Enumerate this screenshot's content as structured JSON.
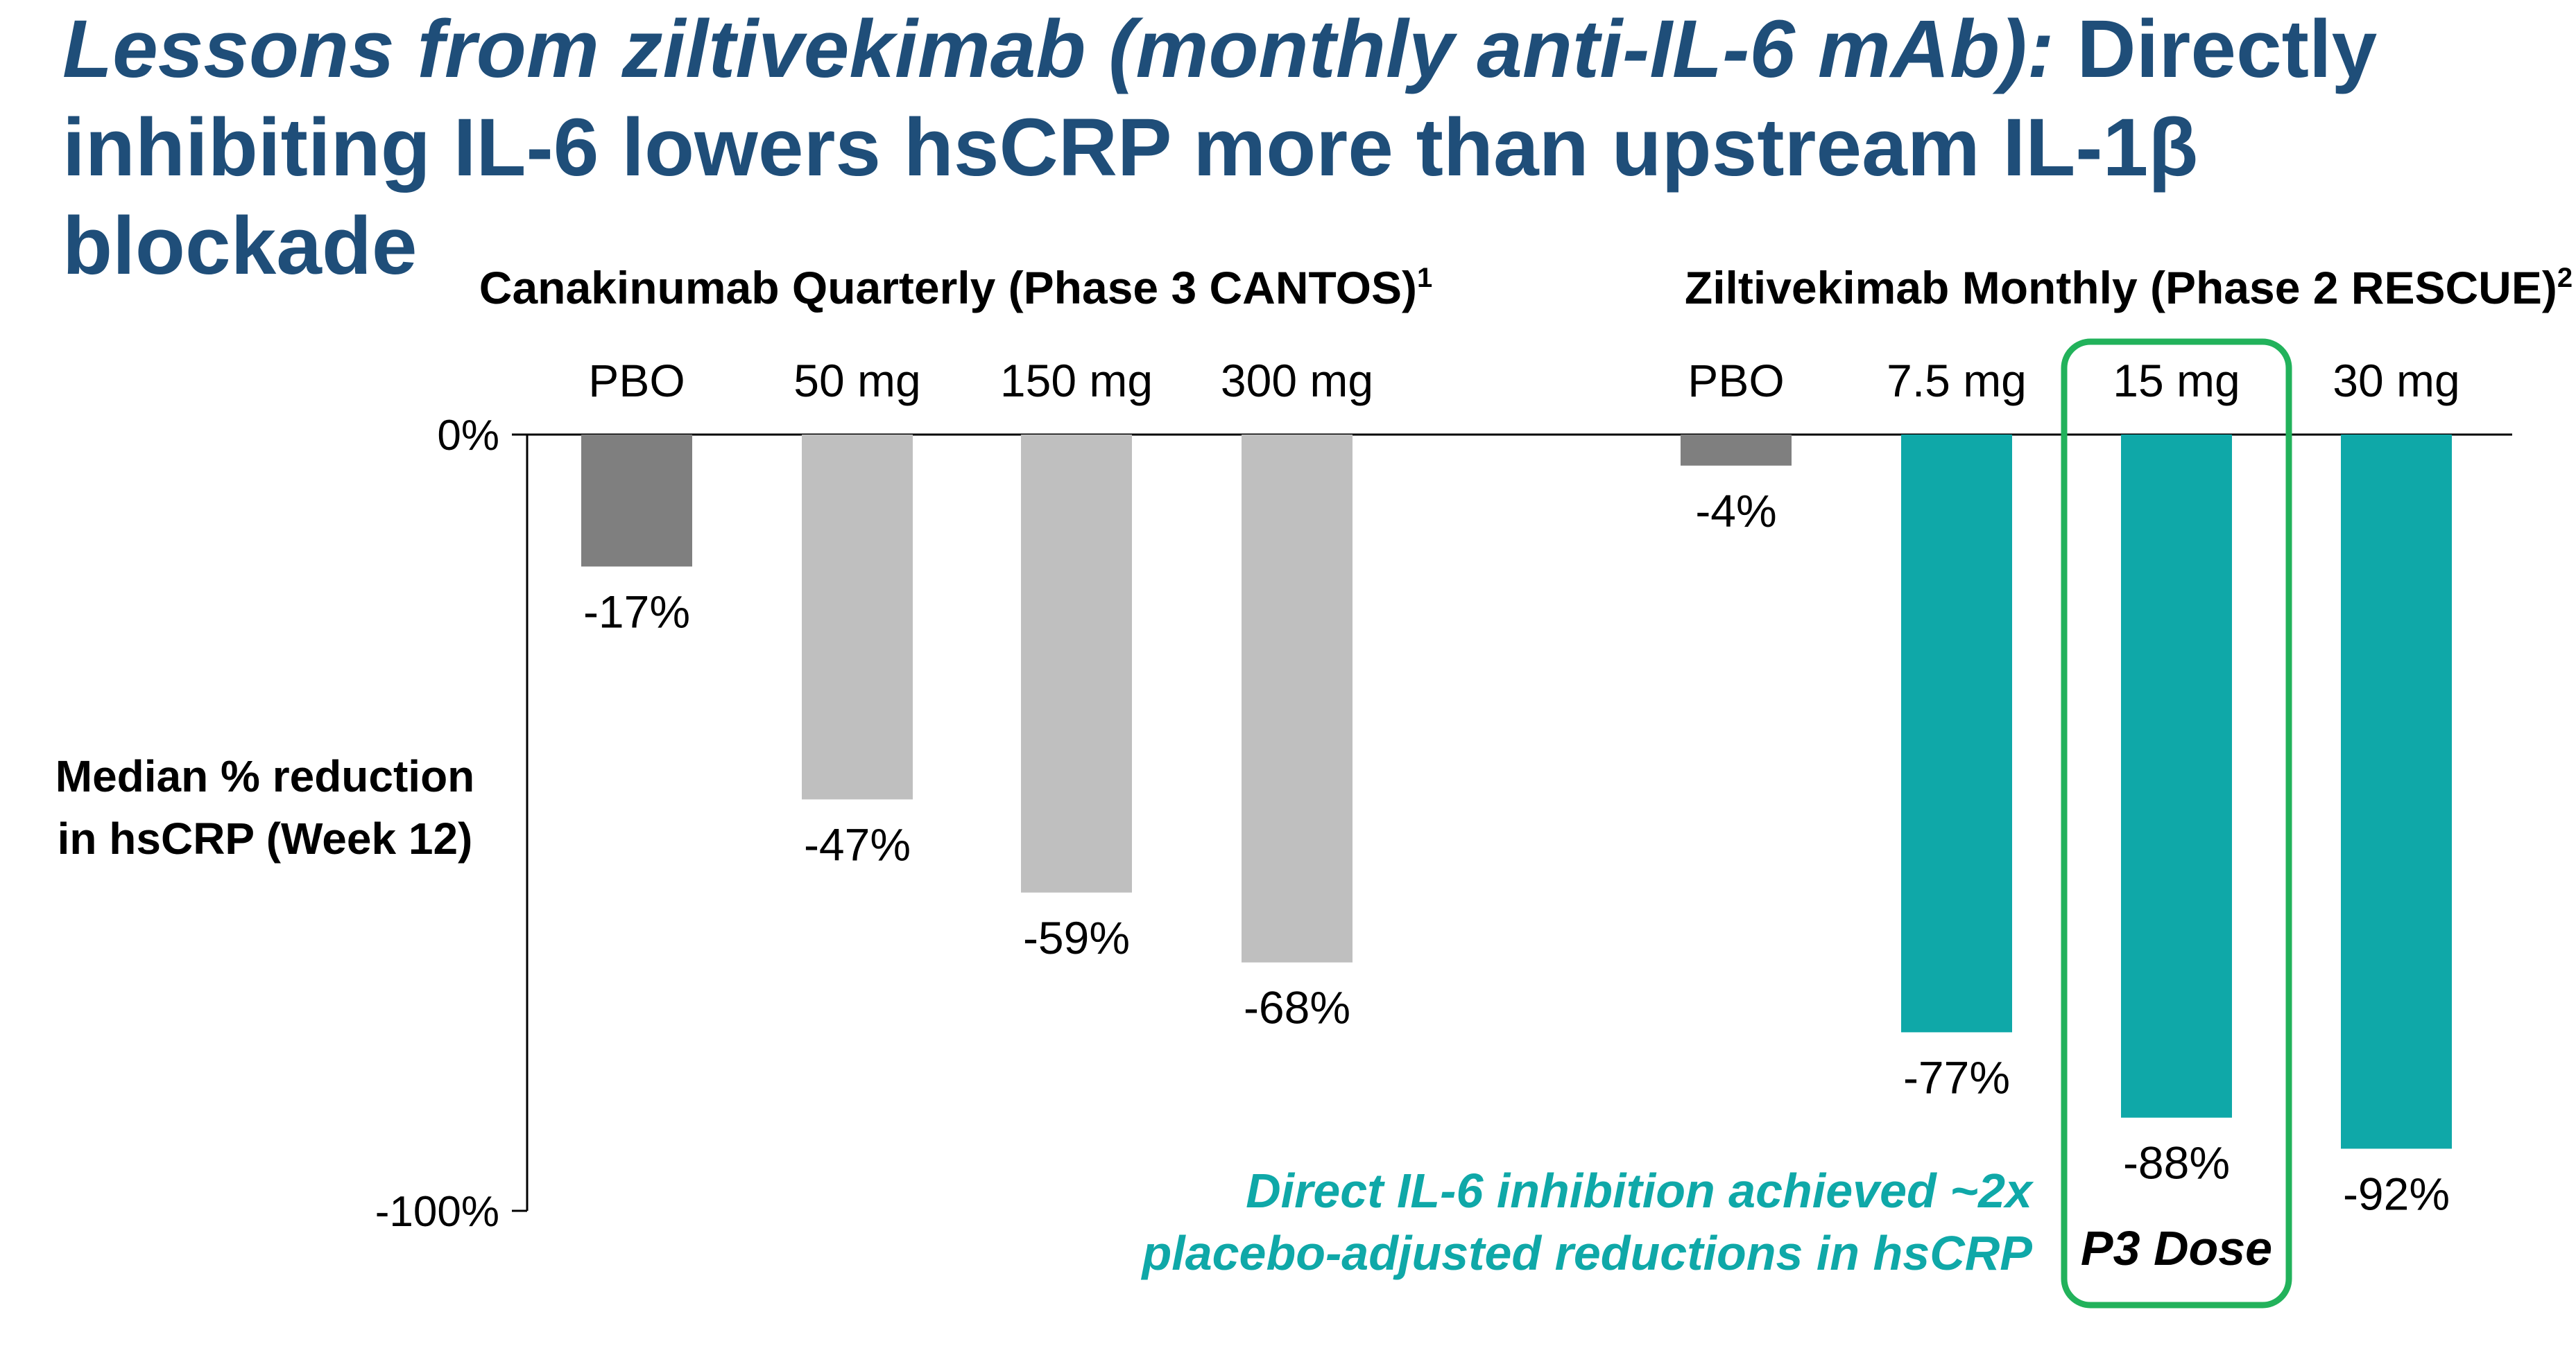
{
  "title": {
    "italic_part": "Lessons from ziltivekimab (monthly anti-IL-6 mAb):",
    "rest": " Directly inhibiting IL-6 lowers hsCRP more than upstream IL-1β blockade"
  },
  "colors": {
    "title": "#1f4e79",
    "placebo": "#7f7f7f",
    "canakinumab": "#bfbfbf",
    "ziltivekimab": "#0fa8a8",
    "highlight_box": "#22b25b",
    "callout": "#0fa8a8"
  },
  "chart_data": {
    "type": "bar",
    "ylabel_lines": [
      "Median % reduction",
      "in hsCRP (Week 12)"
    ],
    "ylim": [
      -100,
      0
    ],
    "yticks": [
      {
        "value": 0,
        "label": "0%"
      },
      {
        "value": -100,
        "label": "-100%"
      }
    ],
    "groups": [
      {
        "name": "Canakinumab Quarterly (Phase 3 CANTOS)",
        "superscript": "1",
        "bars": [
          {
            "category": "PBO",
            "value": -17,
            "label": "-17%",
            "color_key": "placebo"
          },
          {
            "category": "50 mg",
            "value": -47,
            "label": "-47%",
            "color_key": "canakinumab"
          },
          {
            "category": "150 mg",
            "value": -59,
            "label": "-59%",
            "color_key": "canakinumab"
          },
          {
            "category": "300 mg",
            "value": -68,
            "label": "-68%",
            "color_key": "canakinumab"
          }
        ]
      },
      {
        "name": "Ziltivekimab Monthly (Phase 2 RESCUE)",
        "superscript": "2",
        "bars": [
          {
            "category": "PBO",
            "value": -4,
            "label": "-4%",
            "color_key": "placebo"
          },
          {
            "category": "7.5 mg",
            "value": -77,
            "label": "-77%",
            "color_key": "ziltivekimab"
          },
          {
            "category": "15 mg",
            "value": -88,
            "label": "-88%",
            "color_key": "ziltivekimab",
            "highlighted": true
          },
          {
            "category": "30 mg",
            "value": -92,
            "label": "-92%",
            "color_key": "ziltivekimab"
          }
        ]
      }
    ],
    "highlight_label": "P3 Dose",
    "callout_lines": [
      "Direct IL-6 inhibition achieved ~2x",
      "placebo-adjusted reductions in hsCRP"
    ]
  }
}
